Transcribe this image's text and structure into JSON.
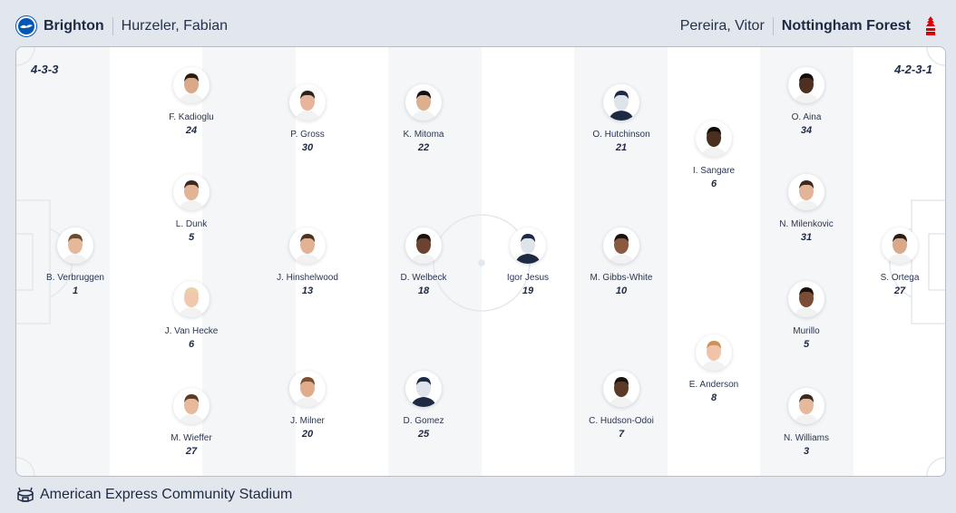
{
  "home": {
    "team": "Brighton",
    "coach": "Hurzeler, Fabian",
    "formation": "4-3-3",
    "crest_icon": "brighton-crest-icon",
    "color": "#0057b8",
    "players": [
      {
        "name": "B. Verbruggen",
        "number": "1",
        "skin": "#e5b89a",
        "hair": "#6b4a2f"
      },
      {
        "name": "F. Kadioglu",
        "number": "24",
        "skin": "#d9a98a",
        "hair": "#2b1d14"
      },
      {
        "name": "L. Dunk",
        "number": "5",
        "skin": "#e1b496",
        "hair": "#3a2a1f"
      },
      {
        "name": "J. Van Hecke",
        "number": "6",
        "skin": "#f0c8ae",
        "hair": "#e8d2a6"
      },
      {
        "name": "M. Wieffer",
        "number": "27",
        "skin": "#e8b99c",
        "hair": "#5a3b24"
      },
      {
        "name": "P. Gross",
        "number": "30",
        "skin": "#e6b59b",
        "hair": "#2f221a"
      },
      {
        "name": "J. Hinshelwood",
        "number": "13",
        "skin": "#e3b294",
        "hair": "#4a3322"
      },
      {
        "name": "J. Milner",
        "number": "20",
        "skin": "#e0ac8c",
        "hair": "#7a5230"
      },
      {
        "name": "K. Mitoma",
        "number": "22",
        "skin": "#dcb08e",
        "hair": "#111111"
      },
      {
        "name": "D. Welbeck",
        "number": "18",
        "skin": "#6b4330",
        "hair": "#1a120d"
      },
      {
        "name": "D. Gomez",
        "number": "25",
        "skin": "#dfe4ea",
        "hair": "#1e2a44"
      }
    ]
  },
  "away": {
    "team": "Nottingham Forest",
    "coach": "Pereira, Vitor",
    "formation": "4-2-3-1",
    "crest_icon": "nottingham-forest-crest-icon",
    "color": "#dd0000",
    "players": [
      {
        "name": "Igor Jesus",
        "number": "19",
        "skin": "#dfe4ea",
        "hair": "#1e2a44"
      },
      {
        "name": "O. Hutchinson",
        "number": "21",
        "skin": "#dfe4ea",
        "hair": "#1e2a44"
      },
      {
        "name": "M. Gibbs-White",
        "number": "10",
        "skin": "#8a5a40",
        "hair": "#1a120d"
      },
      {
        "name": "C. Hudson-Odoi",
        "number": "7",
        "skin": "#5b3a28",
        "hair": "#1a120d"
      },
      {
        "name": "I. Sangare",
        "number": "6",
        "skin": "#4a2e20",
        "hair": "#120c08"
      },
      {
        "name": "E. Anderson",
        "number": "8",
        "skin": "#f0c4a8",
        "hair": "#c9925a"
      },
      {
        "name": "O. Aina",
        "number": "34",
        "skin": "#4e3020",
        "hair": "#120c08"
      },
      {
        "name": "N. Milenkovic",
        "number": "31",
        "skin": "#e3b497",
        "hair": "#3a2a1f"
      },
      {
        "name": "Murillo",
        "number": "5",
        "skin": "#7a4e36",
        "hair": "#1a120d"
      },
      {
        "name": "N. Williams",
        "number": "3",
        "skin": "#e6b89c",
        "hair": "#3a2a1f"
      },
      {
        "name": "S. Ortega",
        "number": "27",
        "skin": "#d9a98a",
        "hair": "#2b1d14"
      }
    ]
  },
  "venue": {
    "name": "American Express Community Stadium",
    "icon": "stadium-icon"
  }
}
